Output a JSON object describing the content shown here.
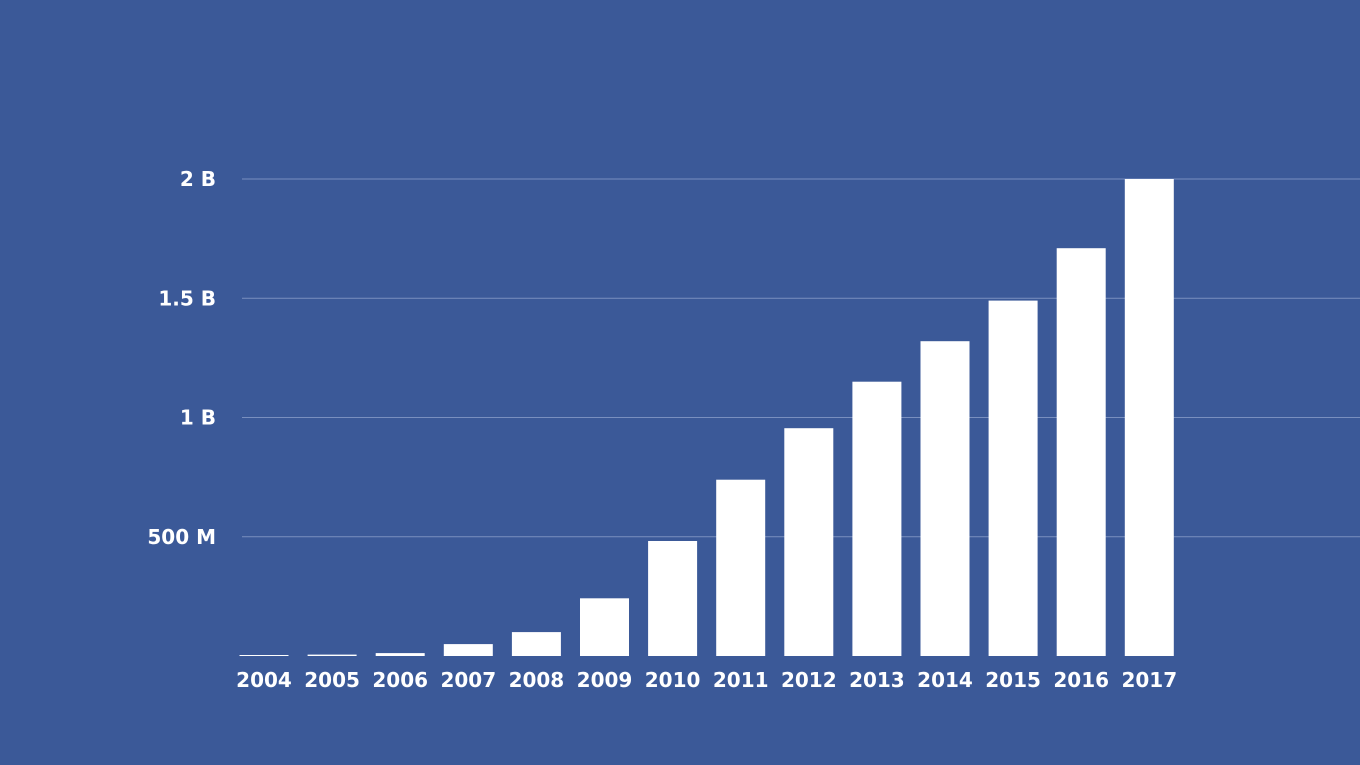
{
  "colors": {
    "background": "#3b5998",
    "bar": "#ffffff",
    "grid": "#8ea2cc",
    "text": "#ffffff"
  },
  "chart_data": {
    "type": "bar",
    "title": "",
    "xlabel": "",
    "ylabel": "",
    "categories": [
      "2004",
      "2005",
      "2006",
      "2007",
      "2008",
      "2009",
      "2010",
      "2011",
      "2012",
      "2013",
      "2014",
      "2015",
      "2016",
      "2017"
    ],
    "values": [
      1,
      6,
      12,
      50,
      100,
      242,
      482,
      739,
      955,
      1150,
      1320,
      1490,
      1710,
      2000
    ],
    "ylim": [
      0,
      2000
    ],
    "y_ticks": [
      {
        "value": 500,
        "label": "500 M"
      },
      {
        "value": 1000,
        "label": "1 B"
      },
      {
        "value": 1500,
        "label": "1.5 B"
      },
      {
        "value": 2000,
        "label": "2 B"
      }
    ],
    "grid": true,
    "legend": "none"
  }
}
